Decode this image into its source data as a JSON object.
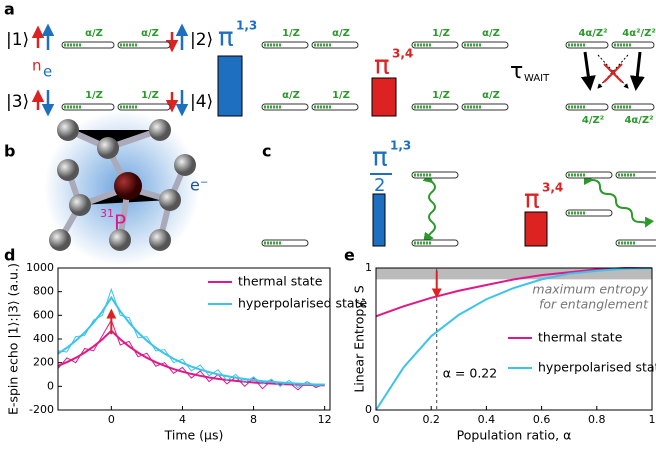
{
  "panel_a": {
    "label": "a",
    "states": [
      "|1⟩",
      "|2⟩",
      "|3⟩",
      "|4⟩"
    ],
    "nuclear": "n",
    "electron": "e",
    "pulse_1": {
      "symbol": "π",
      "superscript": "1,3"
    },
    "pulse_2": {
      "symbol": "π",
      "superscript": "3,4"
    },
    "wait": {
      "symbol": "τ",
      "subscript": "WAIT"
    },
    "populations": [
      [
        "α/Z",
        "α/Z",
        "1/Z",
        "1/Z"
      ],
      [
        "1/Z",
        "α/Z",
        "α/Z",
        "1/Z"
      ],
      [
        "1/Z",
        "α/Z",
        "1/Z",
        "α/Z"
      ],
      [
        "4α/Z²",
        "4α²/Z²",
        "4/Z²",
        "4α/Z²"
      ]
    ]
  },
  "panel_b": {
    "label": "b",
    "isotope": "31",
    "element": "P",
    "electron": "e⁻"
  },
  "panel_c": {
    "label": "c",
    "pulse_1": {
      "symbol": "π",
      "denominator": "2",
      "superscript": "1,3"
    },
    "pulse_2": {
      "symbol": "π",
      "superscript": "3,4"
    }
  },
  "chart_data": [
    {
      "type": "line",
      "label": "d",
      "x": [
        -3,
        -2.5,
        -2,
        -1.5,
        -1,
        -0.5,
        0,
        0.5,
        1,
        1.5,
        2,
        2.5,
        3,
        3.5,
        4,
        4.5,
        5,
        5.5,
        6,
        6.5,
        7,
        7.5,
        8,
        8.5,
        9,
        9.5,
        10,
        10.5,
        11,
        11.5,
        12
      ],
      "series": [
        {
          "name": "thermal state",
          "color": "#e0198a",
          "values": [
            150,
            240,
            200,
            320,
            300,
            430,
            560,
            350,
            380,
            250,
            280,
            170,
            200,
            110,
            160,
            70,
            130,
            40,
            100,
            20,
            80,
            0,
            70,
            -20,
            50,
            10,
            30,
            -30,
            40,
            -10,
            20
          ],
          "fit": [
            173,
            204,
            241,
            285,
            337,
            398,
            470,
            398,
            337,
            285,
            241,
            204,
            173,
            146,
            124,
            105,
            89,
            75,
            63,
            54,
            46,
            39,
            32,
            28,
            24,
            20,
            17,
            14,
            12,
            10,
            8
          ]
        },
        {
          "name": "hyperpolarised state",
          "color": "#3cc4ea",
          "values": [
            300,
            290,
            420,
            430,
            560,
            600,
            820,
            600,
            580,
            410,
            420,
            300,
            310,
            200,
            230,
            130,
            180,
            90,
            140,
            50,
            100,
            30,
            80,
            20,
            60,
            0,
            50,
            -10,
            40,
            0,
            20
          ],
          "fit": [
            276,
            326,
            385,
            455,
            538,
            635,
            750,
            635,
            538,
            455,
            385,
            326,
            276,
            233,
            198,
            167,
            142,
            120,
            101,
            86,
            73,
            62,
            52,
            44,
            38,
            32,
            27,
            23,
            19,
            16,
            14
          ]
        }
      ],
      "xlim": [
        -3,
        12.3
      ],
      "xticks": [
        0,
        4,
        8,
        12
      ],
      "ylim": [
        -200,
        1000
      ],
      "yticks": [
        -200,
        0,
        200,
        400,
        600,
        800,
        1000
      ],
      "x_label": "Time (μs)",
      "y_label": "E-spin echo |1⟩:|3⟩ (a.u.)"
    },
    {
      "type": "line",
      "label": "e",
      "x": [
        0,
        0.1,
        0.2,
        0.3,
        0.4,
        0.5,
        0.6,
        0.7,
        0.8,
        0.9,
        1
      ],
      "series": [
        {
          "name": "thermal state",
          "color": "#e0198a",
          "values": [
            0.66,
            0.73,
            0.79,
            0.84,
            0.88,
            0.92,
            0.95,
            0.97,
            0.99,
            1,
            1
          ]
        },
        {
          "name": "hyperpolarised state",
          "color": "#3cc4ea",
          "values": [
            0,
            0.3,
            0.52,
            0.67,
            0.78,
            0.86,
            0.92,
            0.96,
            0.98,
            0.995,
            1
          ]
        }
      ],
      "xlim": [
        0,
        1
      ],
      "xticks": [
        0,
        0.2,
        0.4,
        0.6,
        0.8,
        1
      ],
      "ylim": [
        0,
        1
      ],
      "yticks": [
        0,
        1
      ],
      "threshold": 0.92,
      "alpha_marker": 0.22,
      "annotations": [
        "maximum entropy",
        "for entanglement",
        "α = 0.22"
      ],
      "x_label": "Population ratio, α",
      "y_label": "Linear Entropy, S"
    }
  ]
}
